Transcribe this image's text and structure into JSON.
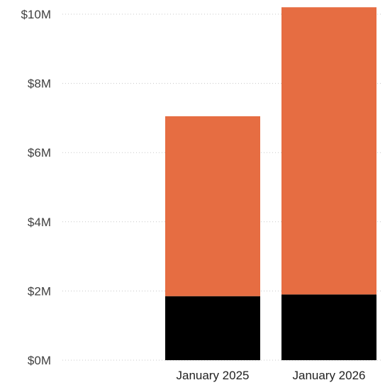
{
  "chart_data": {
    "type": "bar",
    "stacked": true,
    "categories": [
      "January 2025",
      "January 2026"
    ],
    "series": [
      {
        "values": [
          1.85,
          1.9
        ],
        "color": "#000000"
      },
      {
        "values": [
          5.2,
          8.3
        ],
        "color": "#e66d42"
      }
    ],
    "ylim": [
      0,
      10
    ],
    "y_ticks": [
      {
        "value": 0,
        "label": "$0M"
      },
      {
        "value": 2,
        "label": "$2M"
      },
      {
        "value": 4,
        "label": "$4M"
      },
      {
        "value": 6,
        "label": "$6M"
      },
      {
        "value": 8,
        "label": "$8M"
      },
      {
        "value": 10,
        "label": "$10M"
      }
    ],
    "grid": true,
    "legend": "none"
  }
}
